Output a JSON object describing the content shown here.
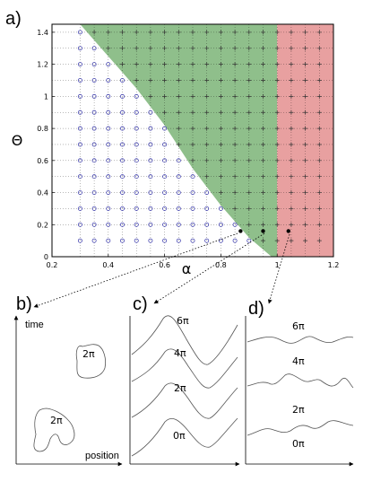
{
  "panel_labels": {
    "a": "a)",
    "b": "b)",
    "c": "c)",
    "d": "d)"
  },
  "colors": {
    "green": "#8fbf8b",
    "red": "#e8a0a0",
    "circle": "#3333aa",
    "cross": "#333333"
  },
  "chart_data": {
    "type": "scatter",
    "xlabel": "α",
    "ylabel": "Θ",
    "xlim": [
      0.2,
      1.2
    ],
    "ylim": [
      0,
      1.45
    ],
    "x_ticks": [
      "0.2",
      "0.4",
      "0.6",
      "0.8",
      "1",
      "1.2"
    ],
    "y_ticks": [
      "0",
      "0.2",
      "0.4",
      "0.6",
      "0.8",
      "1",
      "1.2",
      "1.4"
    ],
    "x_tick_values": [
      0.2,
      0.4,
      0.6,
      0.8,
      1.0,
      1.2
    ],
    "y_tick_values": [
      0,
      0.2,
      0.4,
      0.6,
      0.8,
      1.0,
      1.2,
      1.4
    ],
    "grid": true,
    "grid_x": [
      0.3,
      0.35,
      0.4,
      0.45,
      0.5,
      0.55,
      0.6,
      0.65,
      0.7,
      0.75,
      0.8,
      0.85,
      0.9,
      0.95,
      1.0,
      1.05,
      1.1,
      1.15
    ],
    "grid_y": [
      0.2,
      0.3,
      0.4,
      0.5,
      0.6,
      0.7,
      0.8,
      0.9,
      1.0,
      1.1,
      1.2,
      1.3,
      1.4
    ],
    "regions": {
      "green_boundary": [
        [
          0.3,
          1.45
        ],
        [
          0.4,
          1.25
        ],
        [
          0.5,
          1.05
        ],
        [
          0.6,
          0.82
        ],
        [
          0.7,
          0.55
        ],
        [
          0.8,
          0.32
        ],
        [
          0.9,
          0.12
        ],
        [
          0.98,
          0.0
        ]
      ],
      "red_from_x": 1.0
    },
    "selected_points": [
      {
        "x": 0.87,
        "y": 0.16
      },
      {
        "x": 0.95,
        "y": 0.16
      },
      {
        "x": 1.04,
        "y": 0.16
      }
    ]
  },
  "panel_b": {
    "ylabel": "time",
    "xlabel": "position",
    "blob_labels": [
      "2π",
      "2π"
    ]
  },
  "panel_c": {
    "labels": [
      "6π",
      "4π",
      "2π",
      "0π"
    ]
  },
  "panel_d": {
    "labels": [
      "6π",
      "4π",
      "2π",
      "0π"
    ]
  }
}
